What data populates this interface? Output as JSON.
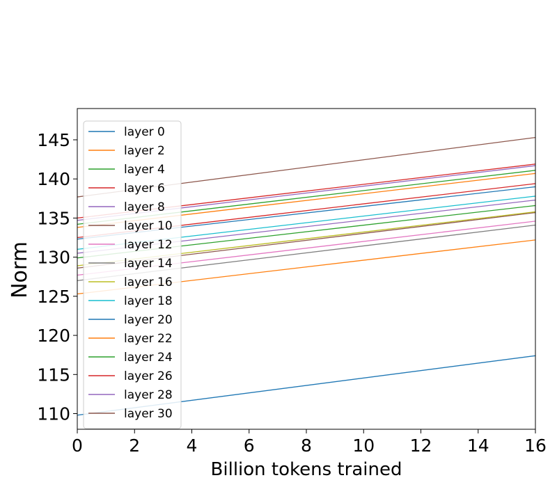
{
  "chart_data": {
    "type": "line",
    "title": "",
    "xlabel": "Billion tokens trained",
    "ylabel": "Norm",
    "xlim": [
      0,
      16
    ],
    "ylim": [
      108,
      149
    ],
    "xticks": [
      0,
      2,
      4,
      6,
      8,
      10,
      12,
      14,
      16
    ],
    "yticks": [
      110,
      115,
      120,
      125,
      130,
      135,
      140,
      145
    ],
    "grid": false,
    "legend_position": "upper-left",
    "x": [
      0,
      16
    ],
    "series": [
      {
        "name": "layer 0",
        "color": "#1f77b4",
        "values": [
          109.8,
          117.4
        ]
      },
      {
        "name": "layer 2",
        "color": "#ff7f0e",
        "values": [
          125.3,
          132.2
        ]
      },
      {
        "name": "layer 4",
        "color": "#2ca02c",
        "values": [
          129.9,
          136.6
        ]
      },
      {
        "name": "layer 6",
        "color": "#d62728",
        "values": [
          132.5,
          139.4
        ]
      },
      {
        "name": "layer 8",
        "color": "#9467bd",
        "values": [
          130.5,
          137.3
        ]
      },
      {
        "name": "layer 10",
        "color": "#8c564b",
        "values": [
          128.6,
          135.7
        ]
      },
      {
        "name": "layer 12",
        "color": "#e377c2",
        "values": [
          127.7,
          134.6
        ]
      },
      {
        "name": "layer 14",
        "color": "#7f7f7f",
        "values": [
          127.0,
          134.1
        ]
      },
      {
        "name": "layer 16",
        "color": "#bcbd22",
        "values": [
          128.9,
          135.8
        ]
      },
      {
        "name": "layer 18",
        "color": "#17becf",
        "values": [
          131.0,
          137.8
        ]
      },
      {
        "name": "layer 20",
        "color": "#1f77b4",
        "values": [
          132.3,
          139.0
        ]
      },
      {
        "name": "layer 22",
        "color": "#ff7f0e",
        "values": [
          133.8,
          140.7
        ]
      },
      {
        "name": "layer 24",
        "color": "#2ca02c",
        "values": [
          134.2,
          141.1
        ]
      },
      {
        "name": "layer 26",
        "color": "#d62728",
        "values": [
          135.0,
          141.9
        ]
      },
      {
        "name": "layer 28",
        "color": "#9467bd",
        "values": [
          134.7,
          141.7
        ]
      },
      {
        "name": "layer 30",
        "color": "#8c564b",
        "values": [
          137.7,
          145.3
        ]
      }
    ]
  }
}
